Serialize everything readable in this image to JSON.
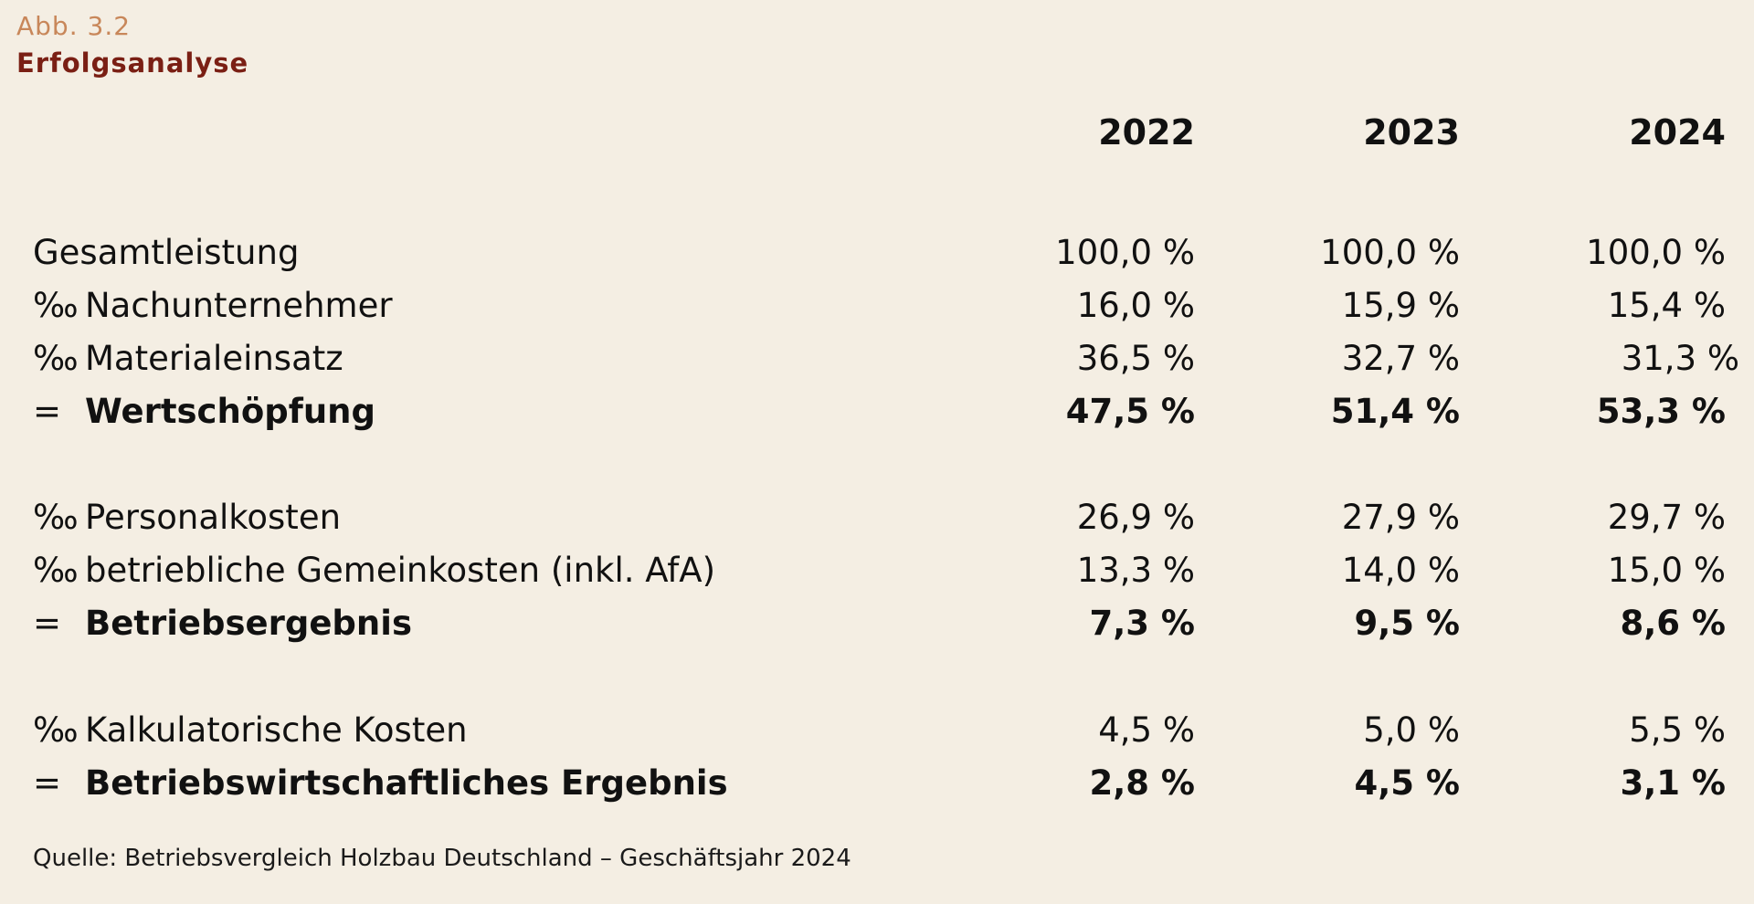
{
  "figure": {
    "label": "Abb. 3.2",
    "title": "Erfolgsanalyse"
  },
  "years": [
    "2022",
    "2023",
    "2024"
  ],
  "rows": [
    {
      "op": "",
      "label": "Gesamtleistung",
      "values": [
        "100,0 %",
        "100,0 %",
        "100,0 %"
      ],
      "bold": false
    },
    {
      "op": "‰",
      "label": "Nachunternehmer",
      "values": [
        "16,0 %",
        "15,9 %",
        "15,4 %"
      ],
      "bold": false
    },
    {
      "op": "‰",
      "label": "Materialeinsatz",
      "values": [
        "36,5 %",
        "32,7 %",
        "31,3 %"
      ],
      "bold": false
    },
    {
      "op": "=",
      "label": "Wertschöpfung",
      "values": [
        "47,5 %",
        "51,4 %",
        "53,3 %"
      ],
      "bold": true
    },
    {
      "op": "‰",
      "label": "Personalkosten",
      "values": [
        "26,9 %",
        "27,9 %",
        "29,7 %"
      ],
      "bold": false
    },
    {
      "op": "‰",
      "label": "betriebliche Gemeinkosten (inkl. AfA)",
      "values": [
        "13,3 %",
        "14,0 %",
        "15,0 %"
      ],
      "bold": false
    },
    {
      "op": "=",
      "label": "Betriebsergebnis",
      "values": [
        "7,3 %",
        "9,5 %",
        "8,6 %"
      ],
      "bold": true
    },
    {
      "op": "‰",
      "label": "Kalkulatorische Kosten",
      "values": [
        "4,5 %",
        "5,0 %",
        "5,5 %"
      ],
      "bold": false
    },
    {
      "op": "=",
      "label": "Betriebswirtschaftliches Ergebnis",
      "values": [
        "2,8 %",
        "4,5 %",
        "3,1 %"
      ],
      "bold": true
    }
  ],
  "source": "Quelle: Betriebsvergleich Holzbau Deutschland – Geschäftsjahr 2024",
  "colors": {
    "background": "#f4eee3",
    "figure_label": "#c8875a",
    "figure_title": "#7a1f14",
    "text": "#111111"
  }
}
